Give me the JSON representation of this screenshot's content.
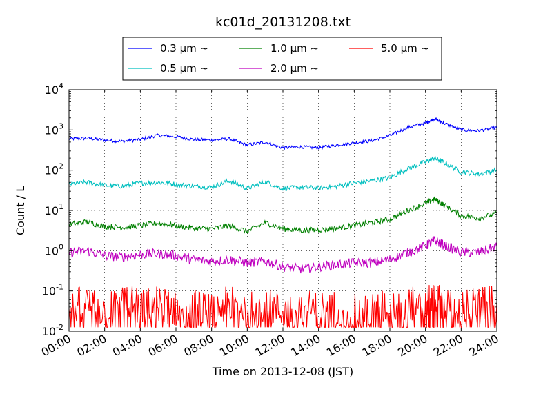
{
  "chart_data": {
    "type": "line",
    "title": "kc01d_20131208.txt",
    "xlabel": "Time on 2013-12-08 (JST)",
    "ylabel": "Count / L",
    "yscale": "log",
    "xlim": [
      0,
      24
    ],
    "ylim": [
      0.01,
      10000
    ],
    "grid": true,
    "legend_position": "top-center",
    "x_tick_labels": [
      "00:00",
      "02:00",
      "04:00",
      "06:00",
      "08:00",
      "10:00",
      "12:00",
      "14:00",
      "16:00",
      "18:00",
      "20:00",
      "22:00",
      "24:00"
    ],
    "y_ticks": [
      {
        "base": "10",
        "exp": "-2",
        "value": 0.01
      },
      {
        "base": "10",
        "exp": "-1",
        "value": 0.1
      },
      {
        "base": "10",
        "exp": "0",
        "value": 1
      },
      {
        "base": "10",
        "exp": "1",
        "value": 10
      },
      {
        "base": "10",
        "exp": "2",
        "value": 100
      },
      {
        "base": "10",
        "exp": "3",
        "value": 1000
      },
      {
        "base": "10",
        "exp": "4",
        "value": 10000
      }
    ],
    "x": [
      0,
      1,
      2,
      3,
      4,
      5,
      6,
      7,
      8,
      9,
      10,
      11,
      12,
      13,
      14,
      15,
      16,
      17,
      18,
      19,
      20,
      20.5,
      21,
      22,
      23,
      24
    ],
    "series": [
      {
        "name": "0.3 μm ∼",
        "color": "#0000ff",
        "values": [
          600,
          620,
          560,
          520,
          580,
          740,
          680,
          580,
          560,
          600,
          420,
          500,
          360,
          380,
          360,
          420,
          480,
          540,
          720,
          1150,
          1500,
          1900,
          1500,
          1000,
          950,
          1150
        ]
      },
      {
        "name": "0.5 μm ∼",
        "color": "#00bfbf",
        "values": [
          45,
          50,
          42,
          40,
          48,
          50,
          45,
          40,
          38,
          55,
          35,
          52,
          35,
          38,
          36,
          40,
          48,
          55,
          65,
          110,
          160,
          200,
          160,
          90,
          80,
          100
        ]
      },
      {
        "name": "1.0 μm ∼",
        "color": "#008000",
        "values": [
          4.5,
          5.2,
          4.0,
          3.8,
          4.2,
          4.8,
          4.2,
          3.6,
          3.5,
          4.2,
          3.0,
          5.0,
          3.5,
          3.2,
          3.3,
          3.6,
          4.2,
          5.0,
          6.0,
          10,
          15,
          19,
          14,
          7.5,
          6.5,
          8.5
        ]
      },
      {
        "name": "2.0 μm ∼",
        "color": "#bf00bf",
        "values": [
          0.9,
          1.0,
          0.75,
          0.7,
          0.8,
          0.85,
          0.75,
          0.6,
          0.55,
          0.6,
          0.5,
          0.55,
          0.4,
          0.35,
          0.4,
          0.45,
          0.5,
          0.5,
          0.6,
          0.9,
          1.3,
          1.8,
          1.4,
          0.9,
          0.9,
          1.3
        ]
      },
      {
        "name": "5.0 μm ∼",
        "color": "#ff0000",
        "values": [
          0.04,
          0.05,
          0.03,
          0.06,
          0.04,
          0.05,
          0.035,
          0.04,
          0.03,
          0.05,
          0.035,
          0.045,
          0.03,
          0.04,
          0.035,
          0.04,
          0.03,
          0.035,
          0.04,
          0.05,
          0.045,
          0.06,
          0.05,
          0.04,
          0.045,
          0.05
        ]
      }
    ]
  }
}
